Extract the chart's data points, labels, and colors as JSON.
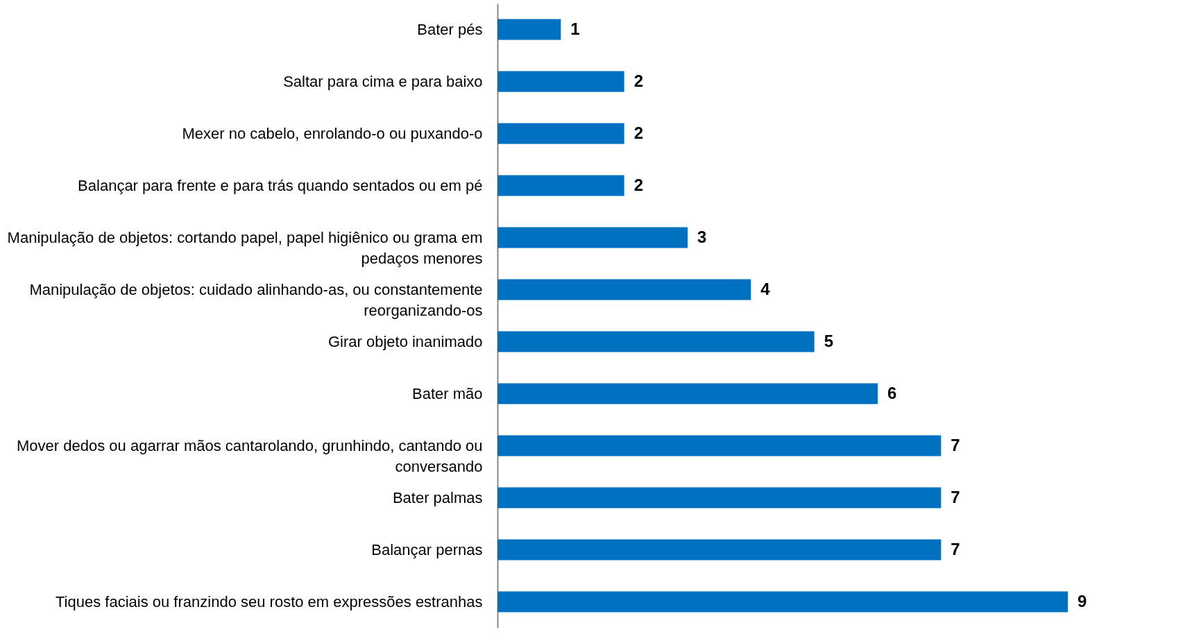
{
  "chart_data": {
    "type": "bar",
    "orientation": "horizontal",
    "color": "#0070c0",
    "data_labels": true,
    "categories": [
      "Bater pés",
      "Saltar para cima e para baixo",
      "Mexer no cabelo, enrolando-o ou puxando-o",
      "Balançar para frente e para trás quando sentados ou em pé",
      "Manipulação de objetos: cortando papel, papel higiênico ou grama em pedaços menores",
      "Manipulação de objetos: cuidado alinhando-as, ou constantemente reorganizando-os",
      "Girar objeto inanimado",
      "Bater mão",
      "Mover dedos ou agarrar mãos cantarolando, grunhindo, cantando ou conversando",
      "Bater palmas",
      "Balançar pernas",
      "Tiques faciais ou franzindo seu rosto em expressões estranhas"
    ],
    "values": [
      1,
      2,
      2,
      2,
      3,
      4,
      5,
      6,
      7,
      7,
      7,
      9
    ]
  }
}
